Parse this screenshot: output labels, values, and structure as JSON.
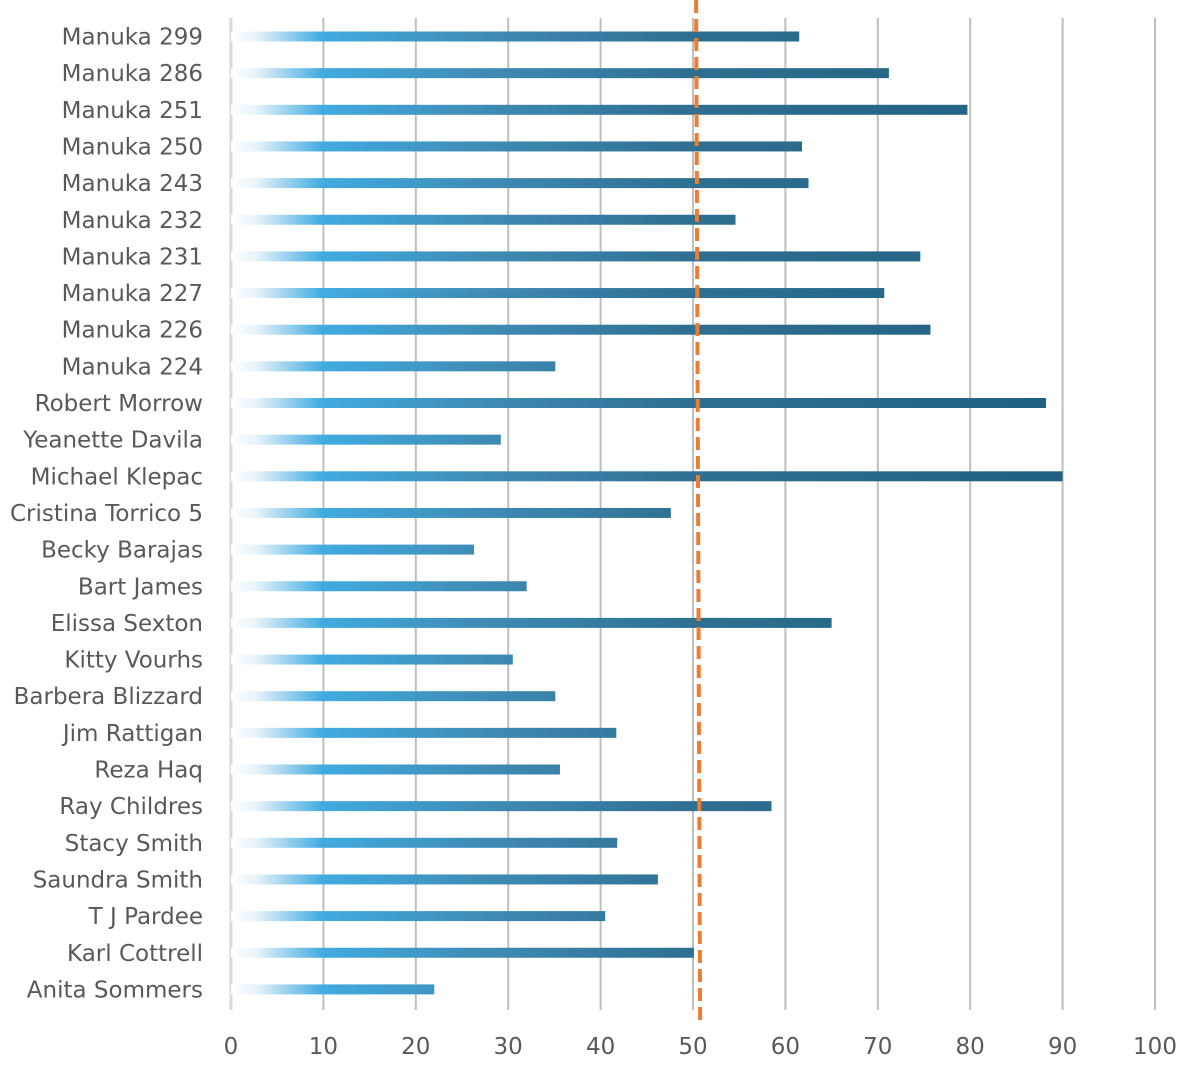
{
  "chart_data": {
    "type": "bar",
    "orientation": "horizontal",
    "categories": [
      "Manuka 299",
      "Manuka 286",
      "Manuka 251",
      "Manuka 250",
      "Manuka 243",
      "Manuka 232",
      "Manuka 231",
      "Manuka 227",
      "Manuka 226",
      "Manuka 224",
      "Robert Morrow",
      "Yeanette Davila",
      "Michael Klepac",
      "Cristina Torrico 5",
      "Becky Barajas",
      "Bart James",
      "Elissa Sexton",
      "Kitty Vourhs",
      "Barbera Blizzard",
      "Jim Rattigan",
      "Reza Haq",
      "Ray Childres",
      "Stacy Smith",
      "Saundra Smith",
      "T J Pardee",
      "Karl Cottrell",
      "Anita Sommers"
    ],
    "values": [
      61.5,
      71.2,
      79.7,
      61.8,
      62.5,
      54.6,
      74.6,
      70.7,
      75.7,
      35.1,
      88.2,
      29.2,
      90.0,
      47.6,
      26.3,
      32.0,
      65.0,
      30.5,
      35.1,
      41.7,
      35.6,
      58.5,
      41.8,
      46.2,
      40.5,
      50.1,
      22.0
    ],
    "reference_line": {
      "value": 50.5,
      "style": "dashed",
      "color": "#ED7D31"
    },
    "xlim": [
      0,
      100
    ],
    "x_ticks": [
      "0",
      "10",
      "20",
      "30",
      "40",
      "50",
      "60",
      "70",
      "80",
      "90",
      "100"
    ],
    "grid": true,
    "legend": "none",
    "title": "",
    "xlabel": "",
    "ylabel": "",
    "colors": {
      "bar_start": "#E8F3FA",
      "bar_mid": "#41ABE0",
      "bar_end": "#1F5F80",
      "grid": "#BFBFBF",
      "text": "#595959"
    }
  }
}
